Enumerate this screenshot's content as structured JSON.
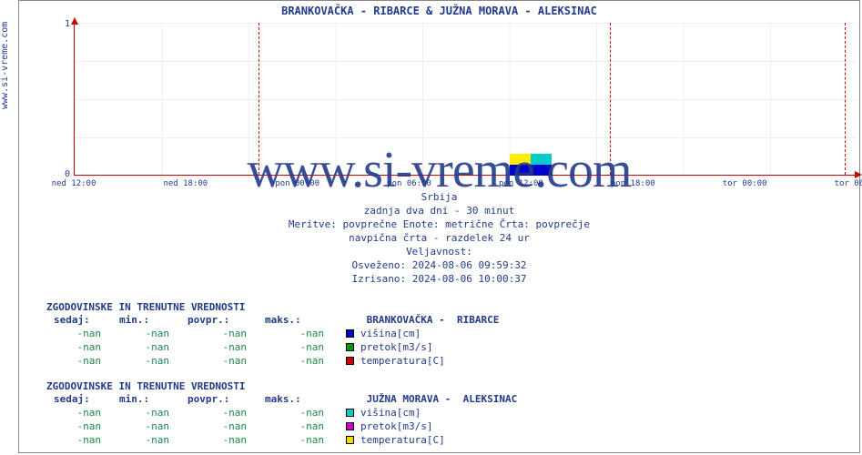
{
  "title": " BRANKOVAČKA -  RIBARCE &  JUŽNA MORAVA -  ALEKSINAC",
  "ylabel": "www.si-vreme.com",
  "watermark": "www.si-vreme.com",
  "chart": {
    "type": "line",
    "ylim": [
      0,
      1
    ],
    "yticks": [
      0,
      1
    ],
    "xticks": [
      "ned 12:00",
      "ned 18:00",
      "pon 00:00",
      "pon 06:00",
      "pon 12:00",
      "pon 18:00",
      "tor 00:00",
      "tor 06:00"
    ],
    "grid_color": "#eeeeee",
    "axis_color": "#cc0000",
    "background_color": "#ffffff",
    "vlines_dashed_at_pct": [
      23.5,
      68.5,
      98.5
    ],
    "legend_box": {
      "left_pct": 55.6,
      "rows": [
        [
          "#ffee00",
          "#00cccc"
        ],
        [
          "#0000cc",
          "#0000cc"
        ]
      ]
    }
  },
  "meta": {
    "line1": "Srbija",
    "line2": "zadnja dva dni - 30 minut",
    "line3": "Meritve: povprečne  Enote: metrične  Črta: povprečje",
    "line4": "navpična črta - razdelek 24 ur",
    "line5": "Veljavnost:",
    "line6": "Osveženo: 2024-08-06 09:59:32",
    "line7": "Izrisano: 2024-08-06 10:00:37"
  },
  "tables": [
    {
      "title": "ZGODOVINSKE IN TRENUTNE VREDNOSTI",
      "station": " BRANKOVAČKA -  RIBARCE",
      "headers": [
        "sedaj:",
        "min.:",
        "povpr.:",
        "maks.:"
      ],
      "rows": [
        {
          "vals": [
            "-nan",
            "-nan",
            "-nan",
            "-nan"
          ],
          "color": "#0000cc",
          "label": "višina[cm]"
        },
        {
          "vals": [
            "-nan",
            "-nan",
            "-nan",
            "-nan"
          ],
          "color": "#009900",
          "label": "pretok[m3/s]"
        },
        {
          "vals": [
            "-nan",
            "-nan",
            "-nan",
            "-nan"
          ],
          "color": "#cc0000",
          "label": "temperatura[C]"
        }
      ]
    },
    {
      "title": "ZGODOVINSKE IN TRENUTNE VREDNOSTI",
      "station": " JUŽNA MORAVA -  ALEKSINAC",
      "headers": [
        "sedaj:",
        "min.:",
        "povpr.:",
        "maks.:"
      ],
      "rows": [
        {
          "vals": [
            "-nan",
            "-nan",
            "-nan",
            "-nan"
          ],
          "color": "#00cccc",
          "label": "višina[cm]"
        },
        {
          "vals": [
            "-nan",
            "-nan",
            "-nan",
            "-nan"
          ],
          "color": "#cc00cc",
          "label": "pretok[m3/s]"
        },
        {
          "vals": [
            "-nan",
            "-nan",
            "-nan",
            "-nan"
          ],
          "color": "#eedd00",
          "label": "temperatura[C]"
        }
      ]
    }
  ],
  "colors": {
    "text_primary": "#223a8a",
    "value_green": "#1a8a4a"
  }
}
